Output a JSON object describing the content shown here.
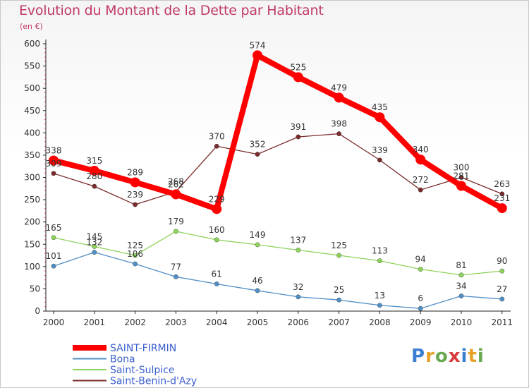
{
  "chart_data": {
    "type": "line",
    "title": "Evolution du Montant de la Dette par Habitant",
    "subtitle": "(en €)",
    "xlabel": "",
    "ylabel": "",
    "categories": [
      "2000",
      "2001",
      "2002",
      "2003",
      "2004",
      "2005",
      "2006",
      "2007",
      "2008",
      "2009",
      "2010",
      "2011"
    ],
    "ylim": [
      0,
      600
    ],
    "yticks": [
      0,
      50,
      100,
      150,
      200,
      250,
      300,
      350,
      400,
      450,
      500,
      550,
      600
    ],
    "grid": false,
    "legend_position": "bottom-left",
    "series": [
      {
        "name": "SAINT-FIRMIN",
        "color": "#ff0000",
        "values": [
          338,
          315,
          289,
          262,
          229,
          574,
          525,
          479,
          435,
          340,
          281,
          231
        ]
      },
      {
        "name": "Bona",
        "color": "#4f8fc6",
        "values": [
          101,
          132,
          106,
          77,
          61,
          46,
          32,
          25,
          13,
          6,
          34,
          27
        ]
      },
      {
        "name": "Saint-Sulpice",
        "color": "#8ed35a",
        "values": [
          165,
          145,
          125,
          179,
          160,
          149,
          137,
          125,
          113,
          94,
          81,
          90
        ]
      },
      {
        "name": "Saint-Benin-d'Azy",
        "color": "#7a2a2a",
        "values": [
          309,
          280,
          239,
          268,
          370,
          352,
          391,
          398,
          339,
          272,
          300,
          263
        ]
      }
    ]
  },
  "branding": {
    "logo_text": "Proxiti"
  }
}
